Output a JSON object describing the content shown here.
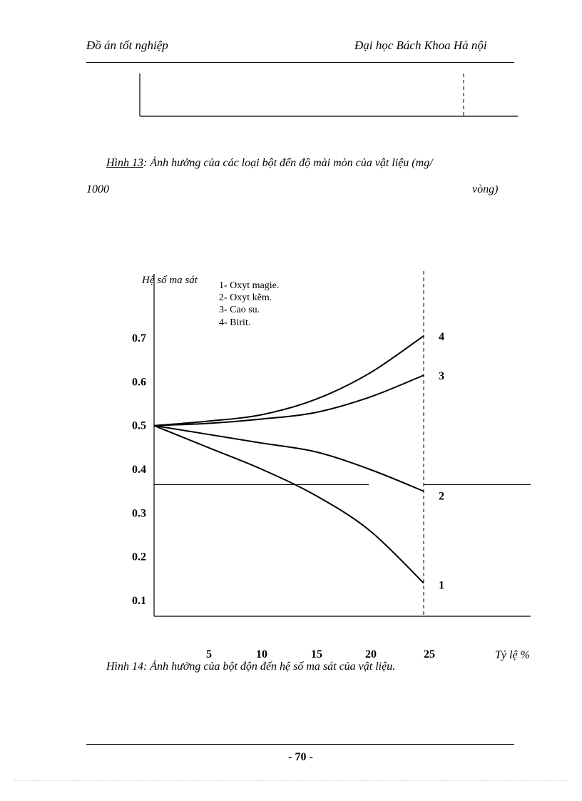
{
  "header": {
    "left": "Đồ án tốt nghiệp",
    "right": "Đại học Bách Khoa Hà nội"
  },
  "figure13_caption": {
    "label": "Hình 13",
    "text": ": Ảnh hưởng của các loại bột đến độ mài mòn của vật liệu (mg/",
    "line2_left": "1000",
    "line2_right": "vòng)"
  },
  "chart_data": {
    "type": "line",
    "title": "",
    "ylabel": "Hệ số ma sát",
    "xlabel": "Tỷ lệ %",
    "x_ticks": [
      5,
      10,
      15,
      20,
      25
    ],
    "y_ticks": [
      "0.1",
      "0.2",
      "0.3",
      "0.4",
      "0.5",
      "0.6",
      "0.7"
    ],
    "xlim": [
      0,
      25
    ],
    "ylim": [
      0.05,
      0.8
    ],
    "legend": [
      "1- Oxyt magie.",
      "2- Oxyt kẽm.",
      "3- Cao su.",
      "4- Birit."
    ],
    "legend_position": "top-left",
    "x": [
      0,
      5,
      10,
      15,
      20,
      25
    ],
    "series": [
      {
        "name": "1",
        "values": [
          0.5,
          0.45,
          0.4,
          0.34,
          0.26,
          0.14
        ]
      },
      {
        "name": "2",
        "values": [
          0.5,
          0.48,
          0.46,
          0.44,
          0.4,
          0.35
        ]
      },
      {
        "name": "3",
        "values": [
          0.5,
          0.505,
          0.515,
          0.53,
          0.565,
          0.615
        ]
      },
      {
        "name": "4",
        "values": [
          0.5,
          0.51,
          0.525,
          0.56,
          0.62,
          0.705
        ]
      }
    ],
    "reference_line_y": 0.365
  },
  "figure14_caption": {
    "text": "Hình 14: Ảnh hưởng của bột độn đến hệ số ma sát của vật liệu."
  },
  "footer": {
    "page_number": "- 70 -"
  }
}
